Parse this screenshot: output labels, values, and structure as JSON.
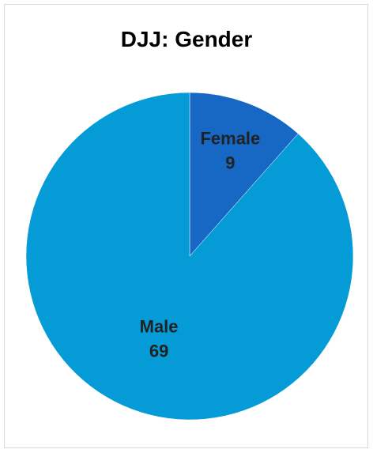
{
  "chart_data": {
    "type": "pie",
    "title": "DJJ: Gender",
    "slices": [
      {
        "label": "Female",
        "value": 9,
        "color": "#1668c4"
      },
      {
        "label": "Male",
        "value": 69,
        "color": "#049bd6"
      }
    ],
    "legend": "none",
    "data_labels": "inside"
  }
}
